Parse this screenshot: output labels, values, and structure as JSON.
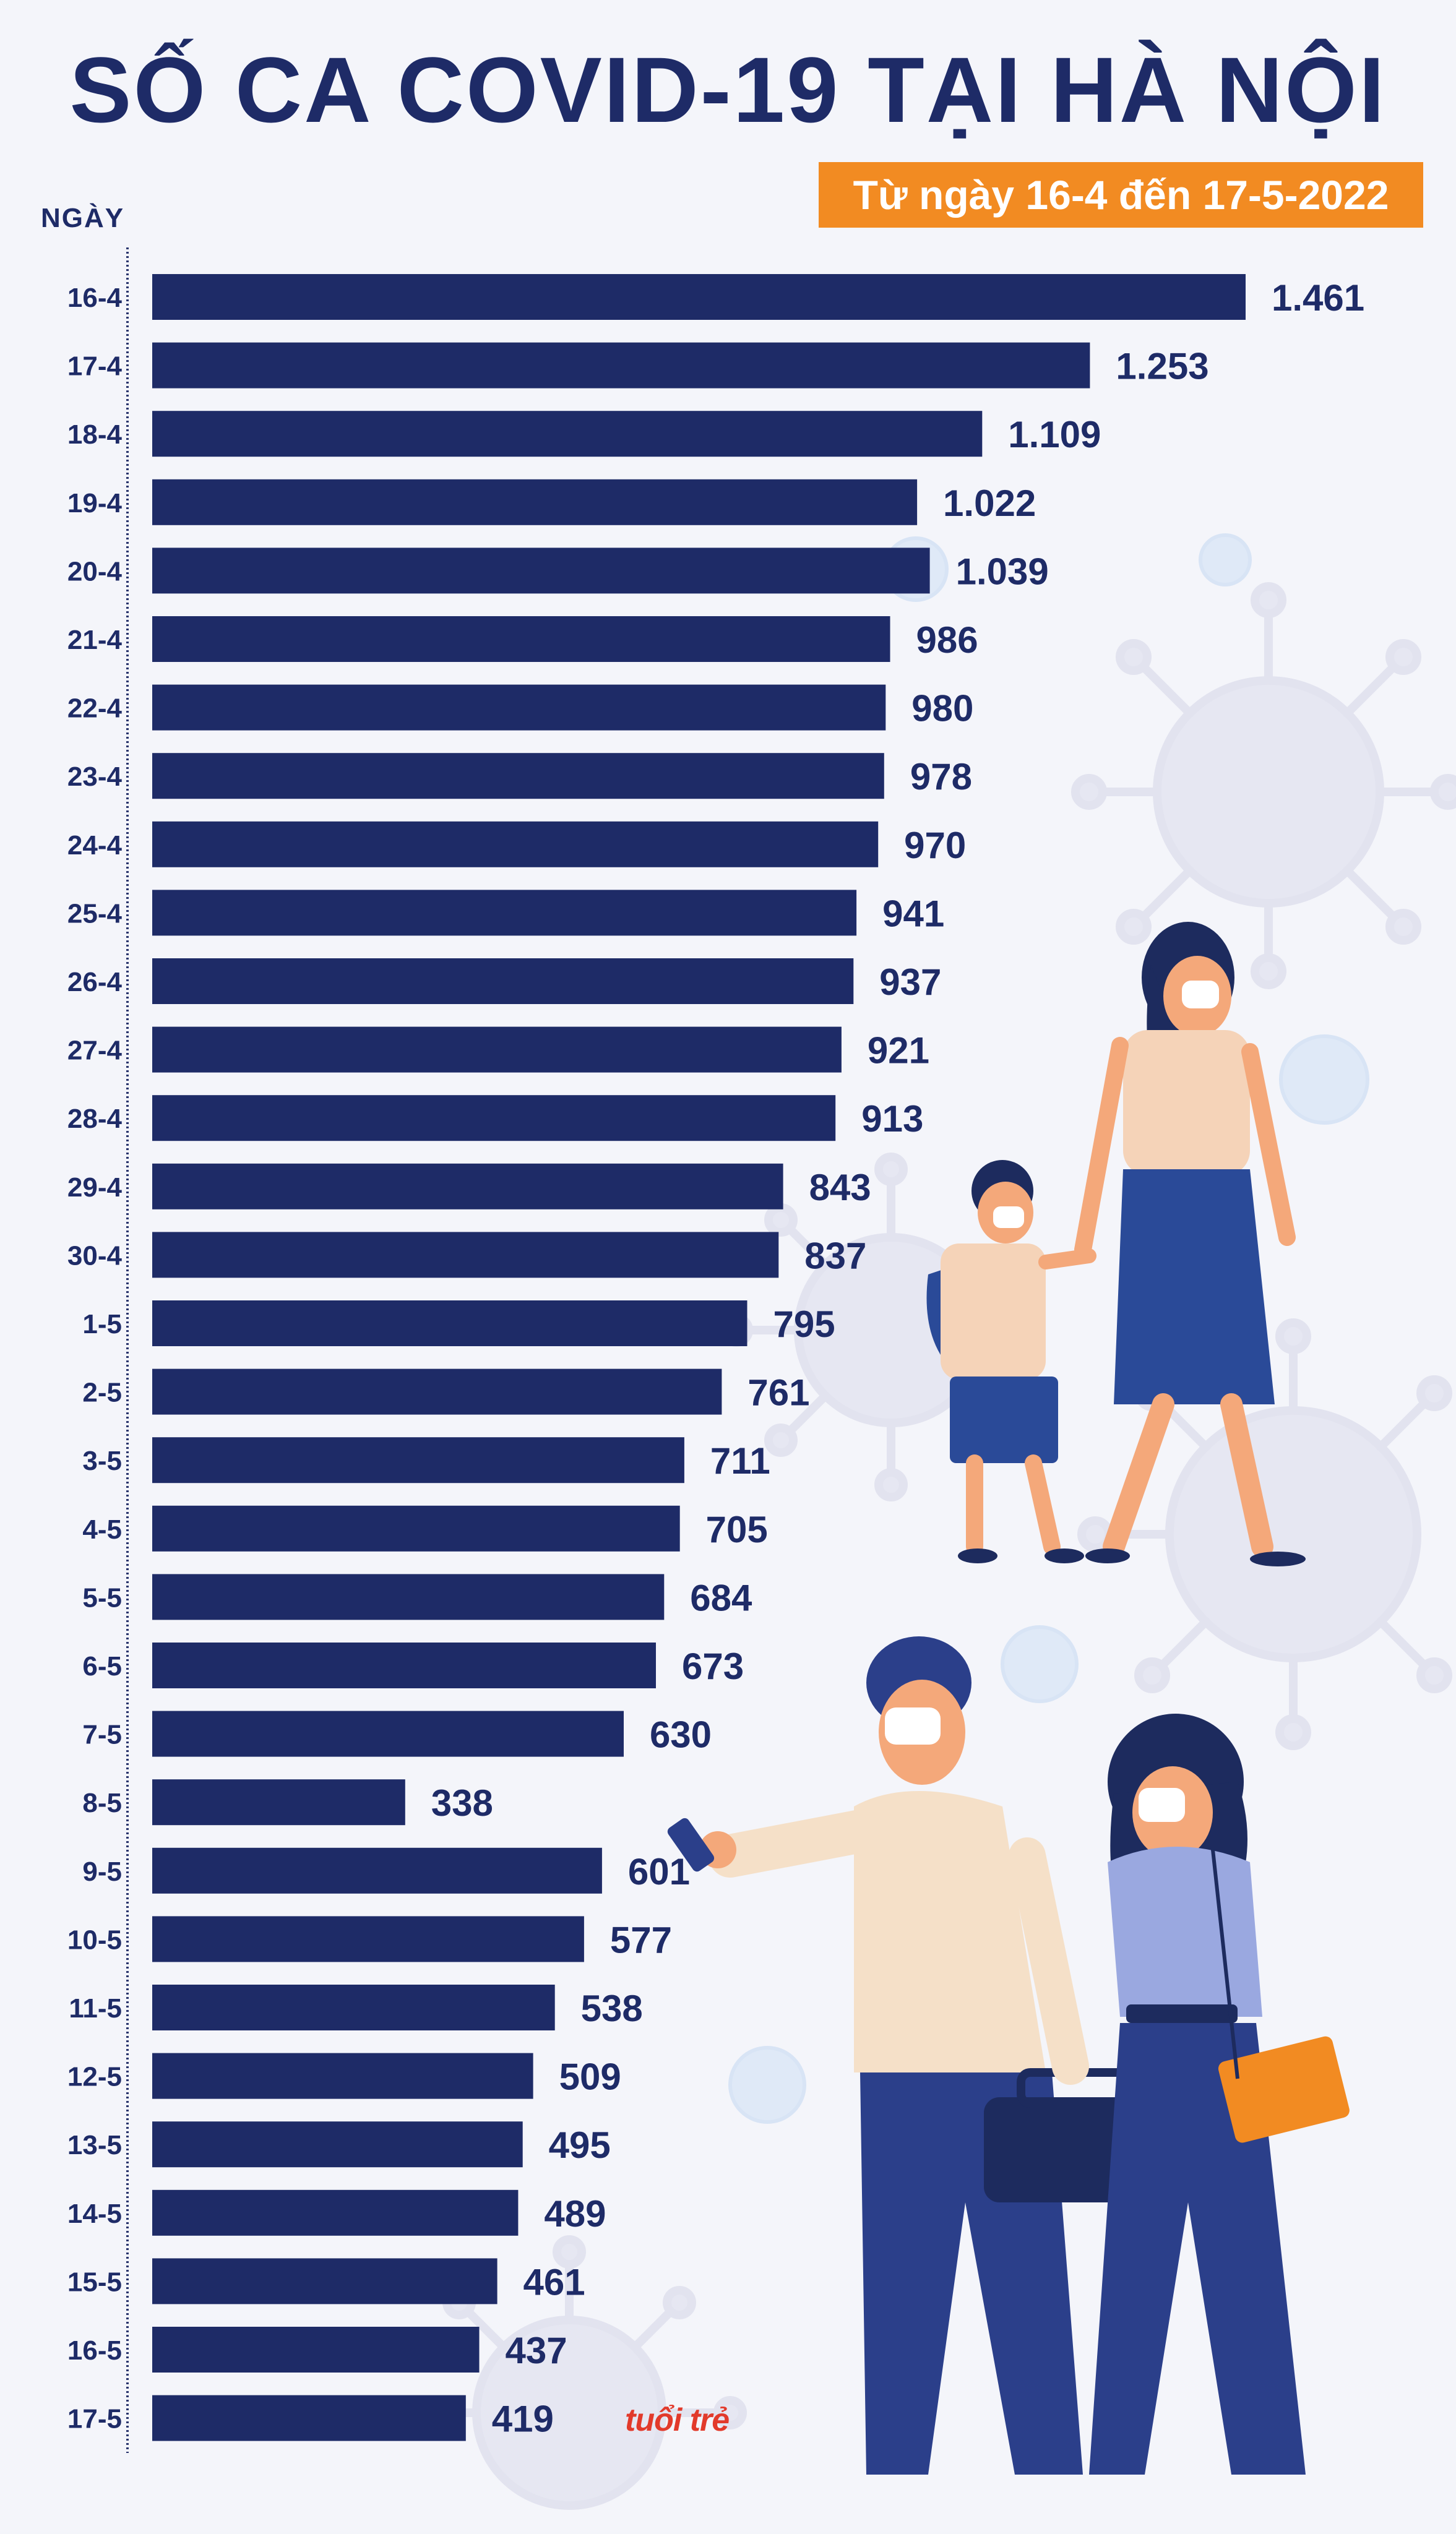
{
  "colors": {
    "bar": "#1e2b67",
    "title": "#1e2b67",
    "badge": "#f28b22",
    "background": "#f4f5fa"
  },
  "chart_data": {
    "type": "bar",
    "orientation": "horizontal",
    "title": "SỐ CA COVID-19 TẠI HÀ NỘI",
    "subtitle": "Từ ngày 16-4 đến 17-5-2022",
    "ylabel": "NGÀY",
    "xlabel": "",
    "grid": false,
    "xlim": [
      0,
      1461
    ],
    "categories": [
      "16-4",
      "17-4",
      "18-4",
      "19-4",
      "20-4",
      "21-4",
      "22-4",
      "23-4",
      "24-4",
      "25-4",
      "26-4",
      "27-4",
      "28-4",
      "29-4",
      "30-4",
      "1-5",
      "2-5",
      "3-5",
      "4-5",
      "5-5",
      "6-5",
      "7-5",
      "8-5",
      "9-5",
      "10-5",
      "11-5",
      "12-5",
      "13-5",
      "14-5",
      "15-5",
      "16-5",
      "17-5"
    ],
    "values": [
      1461,
      1253,
      1109,
      1022,
      1039,
      986,
      980,
      978,
      970,
      941,
      937,
      921,
      913,
      843,
      837,
      795,
      761,
      711,
      705,
      684,
      673,
      630,
      338,
      601,
      577,
      538,
      509,
      495,
      489,
      461,
      437,
      419
    ],
    "value_labels": [
      "1.461",
      "1.253",
      "1.109",
      "1.022",
      "1.039",
      "986",
      "980",
      "978",
      "970",
      "941",
      "937",
      "921",
      "913",
      "843",
      "837",
      "795",
      "761",
      "711",
      "705",
      "684",
      "673",
      "630",
      "338",
      "601",
      "577",
      "538",
      "509",
      "495",
      "489",
      "461",
      "437",
      "419"
    ]
  },
  "logo_text": "tuổi trẻ"
}
